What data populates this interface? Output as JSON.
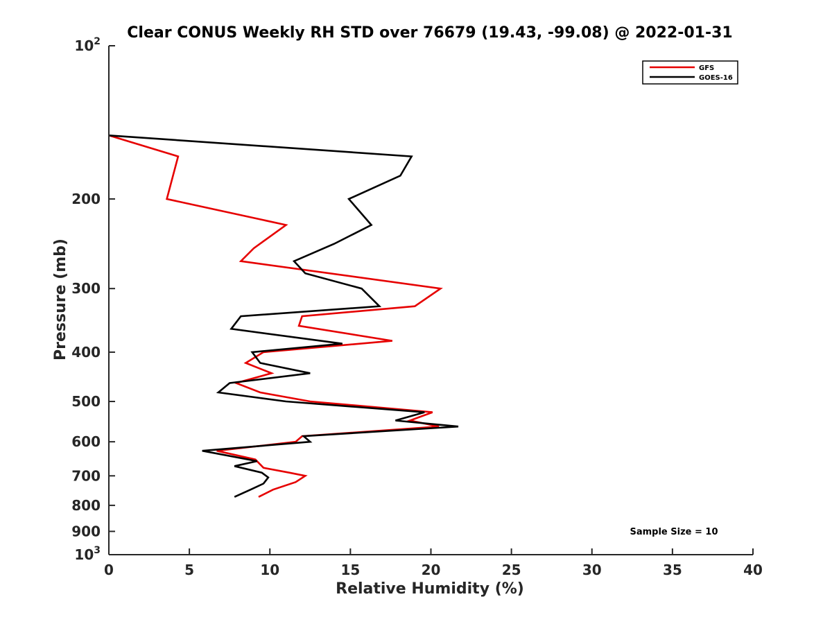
{
  "chart_data": {
    "type": "line",
    "title": "Clear CONUS Weekly RH STD over 76679 (19.43, -99.08) @ 2022-01-31",
    "xlabel": "Relative Humidity (%)",
    "ylabel": "Pressure (mb)",
    "xlim": [
      0,
      40
    ],
    "ylim": [
      100,
      1000
    ],
    "y_scale": "log",
    "y_reversed": true,
    "grid": false,
    "legend_position": "top-right",
    "x_ticks": [
      "0",
      "5",
      "10",
      "15",
      "20",
      "25",
      "30",
      "35",
      "40"
    ],
    "x_tick_values": [
      0,
      5,
      10,
      15,
      20,
      25,
      30,
      35,
      40
    ],
    "y_ticks": [
      {
        "value": 100,
        "base": "10",
        "exp": "2"
      },
      {
        "value": 200,
        "label": "200"
      },
      {
        "value": 300,
        "label": "300"
      },
      {
        "value": 400,
        "label": "400"
      },
      {
        "value": 500,
        "label": "500"
      },
      {
        "value": 600,
        "label": "600"
      },
      {
        "value": 700,
        "label": "700"
      },
      {
        "value": 800,
        "label": "800"
      },
      {
        "value": 900,
        "label": "900"
      },
      {
        "value": 1000,
        "base": "10",
        "exp": "3"
      }
    ],
    "series": [
      {
        "name": "GFS",
        "color": "#e60000",
        "points": [
          {
            "p": 150,
            "rh": 0
          },
          {
            "p": 165,
            "rh": 4.3
          },
          {
            "p": 200,
            "rh": 3.6
          },
          {
            "p": 225,
            "rh": 11.0
          },
          {
            "p": 250,
            "rh": 9.0
          },
          {
            "p": 265,
            "rh": 8.2
          },
          {
            "p": 300,
            "rh": 20.6
          },
          {
            "p": 325,
            "rh": 19.0
          },
          {
            "p": 340,
            "rh": 12.0
          },
          {
            "p": 355,
            "rh": 11.8
          },
          {
            "p": 380,
            "rh": 17.6
          },
          {
            "p": 400,
            "rh": 9.6
          },
          {
            "p": 420,
            "rh": 8.5
          },
          {
            "p": 440,
            "rh": 10.1
          },
          {
            "p": 460,
            "rh": 7.9
          },
          {
            "p": 480,
            "rh": 9.4
          },
          {
            "p": 500,
            "rh": 12.5
          },
          {
            "p": 525,
            "rh": 20.1
          },
          {
            "p": 545,
            "rh": 18.7
          },
          {
            "p": 560,
            "rh": 20.5
          },
          {
            "p": 585,
            "rh": 12.0
          },
          {
            "p": 600,
            "rh": 11.6
          },
          {
            "p": 625,
            "rh": 6.7
          },
          {
            "p": 650,
            "rh": 9.1
          },
          {
            "p": 675,
            "rh": 9.6
          },
          {
            "p": 690,
            "rh": 11.2
          },
          {
            "p": 700,
            "rh": 12.2
          },
          {
            "p": 720,
            "rh": 11.6
          },
          {
            "p": 745,
            "rh": 10.2
          },
          {
            "p": 770,
            "rh": 9.3
          }
        ]
      },
      {
        "name": "GOES-16",
        "color": "#000000",
        "points": [
          {
            "p": 150,
            "rh": 0
          },
          {
            "p": 165,
            "rh": 18.8
          },
          {
            "p": 180,
            "rh": 18.1
          },
          {
            "p": 200,
            "rh": 14.9
          },
          {
            "p": 225,
            "rh": 16.3
          },
          {
            "p": 245,
            "rh": 14.0
          },
          {
            "p": 265,
            "rh": 11.5
          },
          {
            "p": 280,
            "rh": 12.2
          },
          {
            "p": 300,
            "rh": 15.7
          },
          {
            "p": 325,
            "rh": 16.8
          },
          {
            "p": 340,
            "rh": 8.2
          },
          {
            "p": 360,
            "rh": 7.6
          },
          {
            "p": 385,
            "rh": 14.5
          },
          {
            "p": 400,
            "rh": 8.9
          },
          {
            "p": 420,
            "rh": 9.4
          },
          {
            "p": 440,
            "rh": 12.5
          },
          {
            "p": 460,
            "rh": 7.5
          },
          {
            "p": 480,
            "rh": 6.8
          },
          {
            "p": 500,
            "rh": 11.0
          },
          {
            "p": 525,
            "rh": 19.6
          },
          {
            "p": 545,
            "rh": 17.8
          },
          {
            "p": 560,
            "rh": 21.7
          },
          {
            "p": 585,
            "rh": 12.1
          },
          {
            "p": 600,
            "rh": 12.5
          },
          {
            "p": 625,
            "rh": 5.8
          },
          {
            "p": 655,
            "rh": 9.2
          },
          {
            "p": 670,
            "rh": 7.8
          },
          {
            "p": 690,
            "rh": 9.5
          },
          {
            "p": 705,
            "rh": 9.9
          },
          {
            "p": 725,
            "rh": 9.6
          },
          {
            "p": 745,
            "rh": 8.8
          },
          {
            "p": 770,
            "rh": 7.8
          }
        ]
      }
    ],
    "annotation": "Sample Size = 10"
  }
}
